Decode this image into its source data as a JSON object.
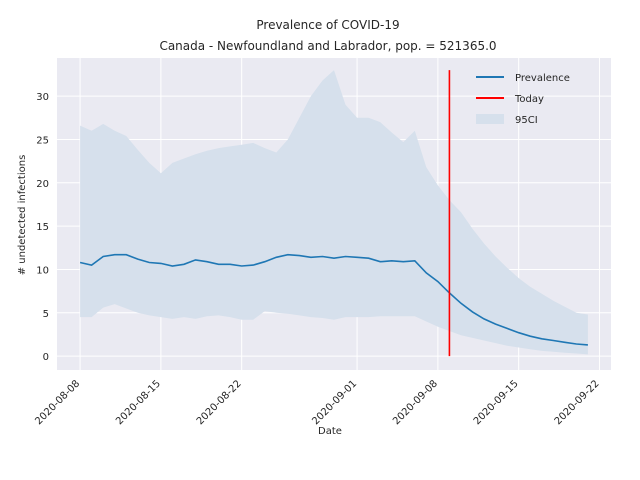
{
  "chart_data": {
    "type": "line",
    "title": "Prevalence of COVID-19",
    "subtitle": "Canada - Newfoundland and Labrador, pop. = 521365.0",
    "xlabel": "Date",
    "ylabel": "# undetected infections",
    "xlim": [
      "2020-08-06",
      "2020-09-23"
    ],
    "ylim": [
      -1.6,
      34.4
    ],
    "grid": true,
    "legend_position": "top-right",
    "x_ticks": [
      "2020-08-08",
      "2020-08-15",
      "2020-08-22",
      "2020-09-01",
      "2020-09-08",
      "2020-09-15",
      "2020-09-22"
    ],
    "y_ticks": [
      0,
      5,
      10,
      15,
      20,
      25,
      30
    ],
    "dates": [
      "2020-08-08",
      "2020-08-09",
      "2020-08-10",
      "2020-08-11",
      "2020-08-12",
      "2020-08-13",
      "2020-08-14",
      "2020-08-15",
      "2020-08-16",
      "2020-08-17",
      "2020-08-18",
      "2020-08-19",
      "2020-08-20",
      "2020-08-21",
      "2020-08-22",
      "2020-08-23",
      "2020-08-24",
      "2020-08-25",
      "2020-08-26",
      "2020-08-27",
      "2020-08-28",
      "2020-08-29",
      "2020-08-30",
      "2020-08-31",
      "2020-09-01",
      "2020-09-02",
      "2020-09-03",
      "2020-09-04",
      "2020-09-05",
      "2020-09-06",
      "2020-09-07",
      "2020-09-08",
      "2020-09-09",
      "2020-09-10",
      "2020-09-11",
      "2020-09-12",
      "2020-09-13",
      "2020-09-14",
      "2020-09-15",
      "2020-09-16",
      "2020-09-17",
      "2020-09-18",
      "2020-09-19",
      "2020-09-20",
      "2020-09-21"
    ],
    "series": [
      {
        "name": "Prevalence",
        "color": "#1f77b4",
        "values": [
          10.8,
          10.5,
          11.5,
          11.7,
          11.7,
          11.2,
          10.8,
          10.7,
          10.4,
          10.6,
          11.1,
          10.9,
          10.6,
          10.6,
          10.4,
          10.5,
          10.9,
          11.4,
          11.7,
          11.6,
          11.4,
          11.5,
          11.3,
          11.5,
          11.4,
          11.3,
          10.9,
          11.0,
          10.9,
          11.0,
          9.6,
          8.6,
          7.3,
          6.1,
          5.1,
          4.3,
          3.7,
          3.2,
          2.7,
          2.3,
          2.0,
          1.8,
          1.6,
          1.4,
          1.3
        ]
      },
      {
        "name": "95CI",
        "color": "#d6e0ec",
        "lower": [
          4.5,
          4.5,
          5.6,
          6.0,
          5.5,
          5.0,
          4.7,
          4.5,
          4.3,
          4.5,
          4.3,
          4.6,
          4.7,
          4.5,
          4.2,
          4.2,
          5.2,
          5.0,
          4.9,
          4.7,
          4.5,
          4.4,
          4.2,
          4.5,
          4.5,
          4.5,
          4.6,
          4.6,
          4.6,
          4.6,
          4.0,
          3.4,
          2.9,
          2.4,
          2.1,
          1.8,
          1.5,
          1.2,
          1.0,
          0.8,
          0.6,
          0.5,
          0.4,
          0.3,
          0.2
        ],
        "upper": [
          26.6,
          26.0,
          26.8,
          26.0,
          25.4,
          23.8,
          22.3,
          21.1,
          22.3,
          22.8,
          23.3,
          23.7,
          24.0,
          24.2,
          24.4,
          24.6,
          24.0,
          23.5,
          25.0,
          27.5,
          30.0,
          31.8,
          33.0,
          29.0,
          27.5,
          27.5,
          27.0,
          25.8,
          24.7,
          26.0,
          21.8,
          19.7,
          18.0,
          16.6,
          14.7,
          13.0,
          11.5,
          10.2,
          9.0,
          8.0,
          7.2,
          6.4,
          5.7,
          5.0,
          4.8
        ]
      }
    ],
    "today": {
      "name": "Today",
      "date": "2020-09-09",
      "y_range": [
        0,
        33.0
      ],
      "color": "#ff0000"
    }
  }
}
